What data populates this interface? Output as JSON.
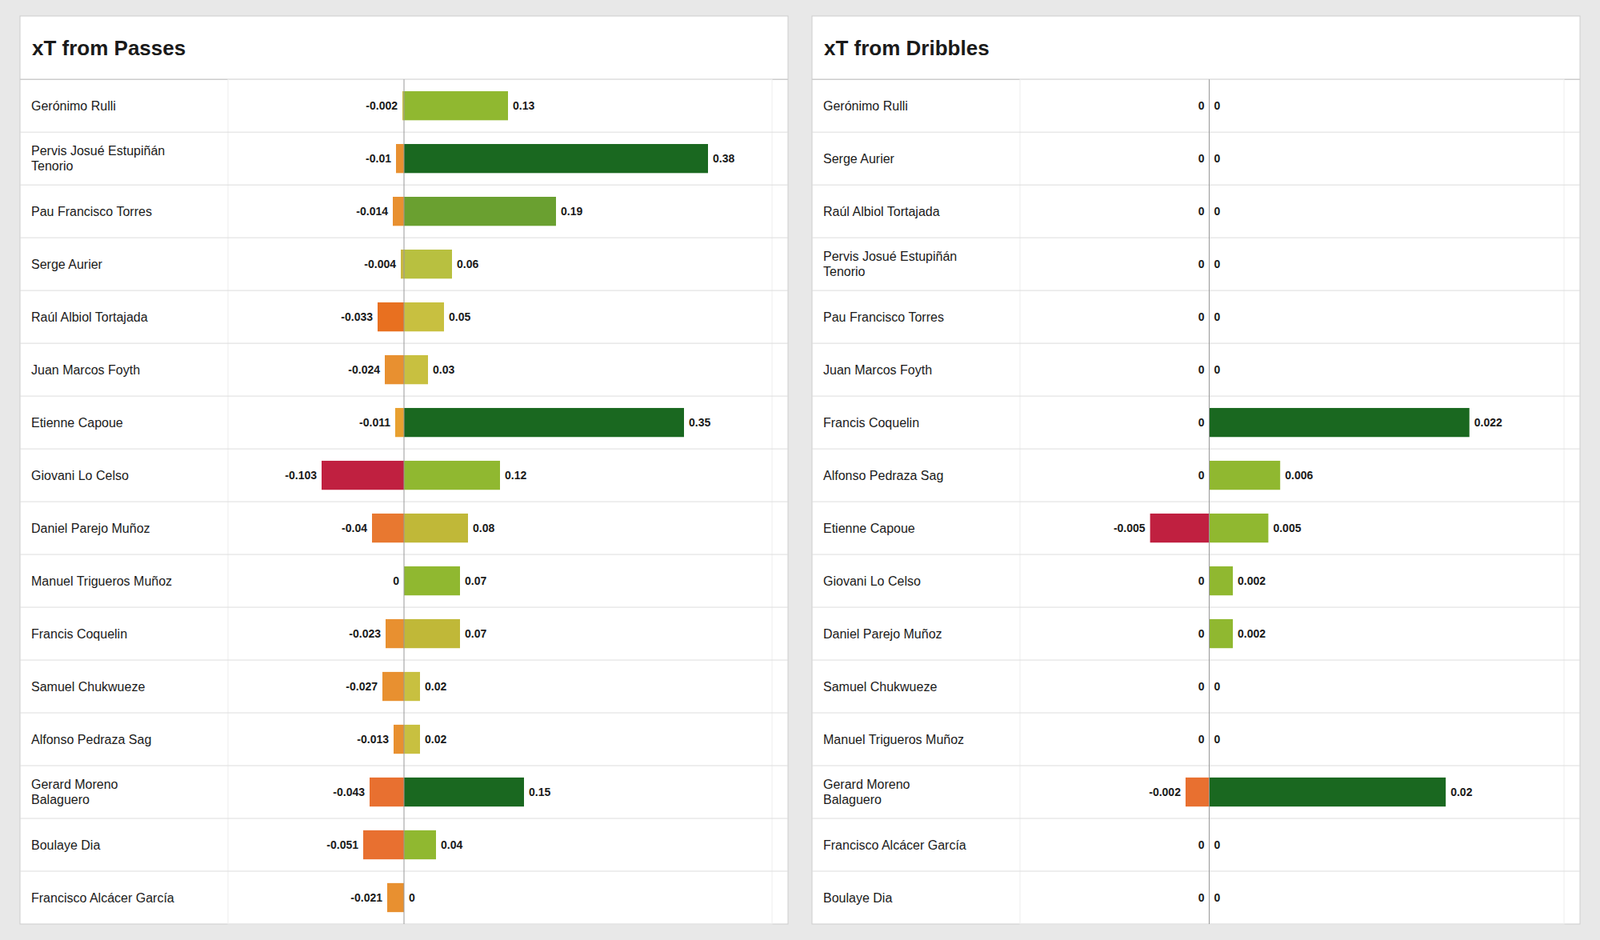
{
  "chart_data": [
    {
      "type": "bar",
      "orientation": "horizontal",
      "title": "xT from Passes",
      "categories": [
        "Gerónimo Rulli",
        "Pervis Josué Estupiñán\nTenorio",
        "Pau Francisco Torres",
        "Serge Aurier",
        "Raúl Albiol Tortajada",
        "Juan Marcos Foyth",
        "Etienne Capoue",
        "Giovani Lo Celso",
        "Daniel Parejo Muñoz",
        "Manuel Trigueros Muñoz",
        "Francis Coquelin",
        "Samuel Chukwueze",
        "Alfonso Pedraza Sag",
        "Gerard Moreno\nBalaguero",
        "Boulaye Dia",
        "Francisco Alcácer García"
      ],
      "series": [
        {
          "values": [
            -0.002,
            -0.01,
            -0.014,
            -0.004,
            -0.033,
            -0.024,
            -0.011,
            -0.103,
            -0.04,
            0,
            -0.023,
            -0.027,
            -0.013,
            -0.043,
            -0.051,
            -0.021
          ],
          "colors": [
            "#c8c040",
            "#e89030",
            "#e89030",
            "#c8b840",
            "#e87020",
            "#e89030",
            "#e8a030",
            "#c02040",
            "#e87830",
            "#e89030",
            "#e89030",
            "#e89030",
            "#e89030",
            "#e87030",
            "#e87030",
            "#e89030"
          ]
        },
        {
          "values": [
            0.13,
            0.38,
            0.19,
            0.06,
            0.05,
            0.03,
            0.35,
            0.12,
            0.08,
            0.07,
            0.07,
            0.02,
            0.02,
            0.15,
            0.04,
            0
          ],
          "colors": [
            "#90b830",
            "#1a6820",
            "#6aa030",
            "#b8c040",
            "#c8c040",
            "#c8c040",
            "#1a6820",
            "#90b830",
            "#c0b838",
            "#90b830",
            "#c0b838",
            "#c8c040",
            "#c8c040",
            "#1a6820",
            "#90b830",
            "#c8c040"
          ]
        }
      ],
      "xlim": [
        -0.22,
        0.46
      ],
      "tick_labels": false,
      "data_labels": true,
      "stacked": true
    },
    {
      "type": "bar",
      "orientation": "horizontal",
      "title": "xT from Dribbles",
      "categories": [
        "Gerónimo Rulli",
        "Serge Aurier",
        "Raúl Albiol Tortajada",
        "Pervis Josué Estupiñán\nTenorio",
        "Pau Francisco Torres",
        "Juan Marcos Foyth",
        "Francis Coquelin",
        "Alfonso Pedraza Sag",
        "Etienne Capoue",
        "Giovani Lo Celso",
        "Daniel Parejo Muñoz",
        "Samuel Chukwueze",
        "Manuel Trigueros Muñoz",
        "Gerard Moreno\nBalaguero",
        "Francisco Alcácer García",
        "Boulaye Dia"
      ],
      "series": [
        {
          "values": [
            0,
            0,
            0,
            0,
            0,
            0,
            0,
            0,
            -0.005,
            0,
            0,
            0,
            0,
            -0.002,
            0,
            0
          ],
          "colors": [
            "#e89030",
            "#e89030",
            "#e89030",
            "#e89030",
            "#e89030",
            "#e89030",
            "#e89030",
            "#e89030",
            "#c02040",
            "#e89030",
            "#e89030",
            "#e89030",
            "#e89030",
            "#e87030",
            "#e89030",
            "#e89030"
          ]
        },
        {
          "values": [
            0,
            0,
            0,
            0,
            0,
            0,
            0.022,
            0.006,
            0.005,
            0.002,
            0.002,
            0,
            0,
            0.02,
            0,
            0
          ],
          "colors": [
            "#c8c040",
            "#c8c040",
            "#c8c040",
            "#c8c040",
            "#c8c040",
            "#c8c040",
            "#1a6820",
            "#90b830",
            "#90b830",
            "#90b830",
            "#90b830",
            "#c8c040",
            "#c8c040",
            "#1a6820",
            "#c8c040",
            "#c8c040"
          ]
        }
      ],
      "xlim": [
        -0.016,
        0.03
      ],
      "tick_labels": false,
      "data_labels": true,
      "stacked": true
    }
  ]
}
